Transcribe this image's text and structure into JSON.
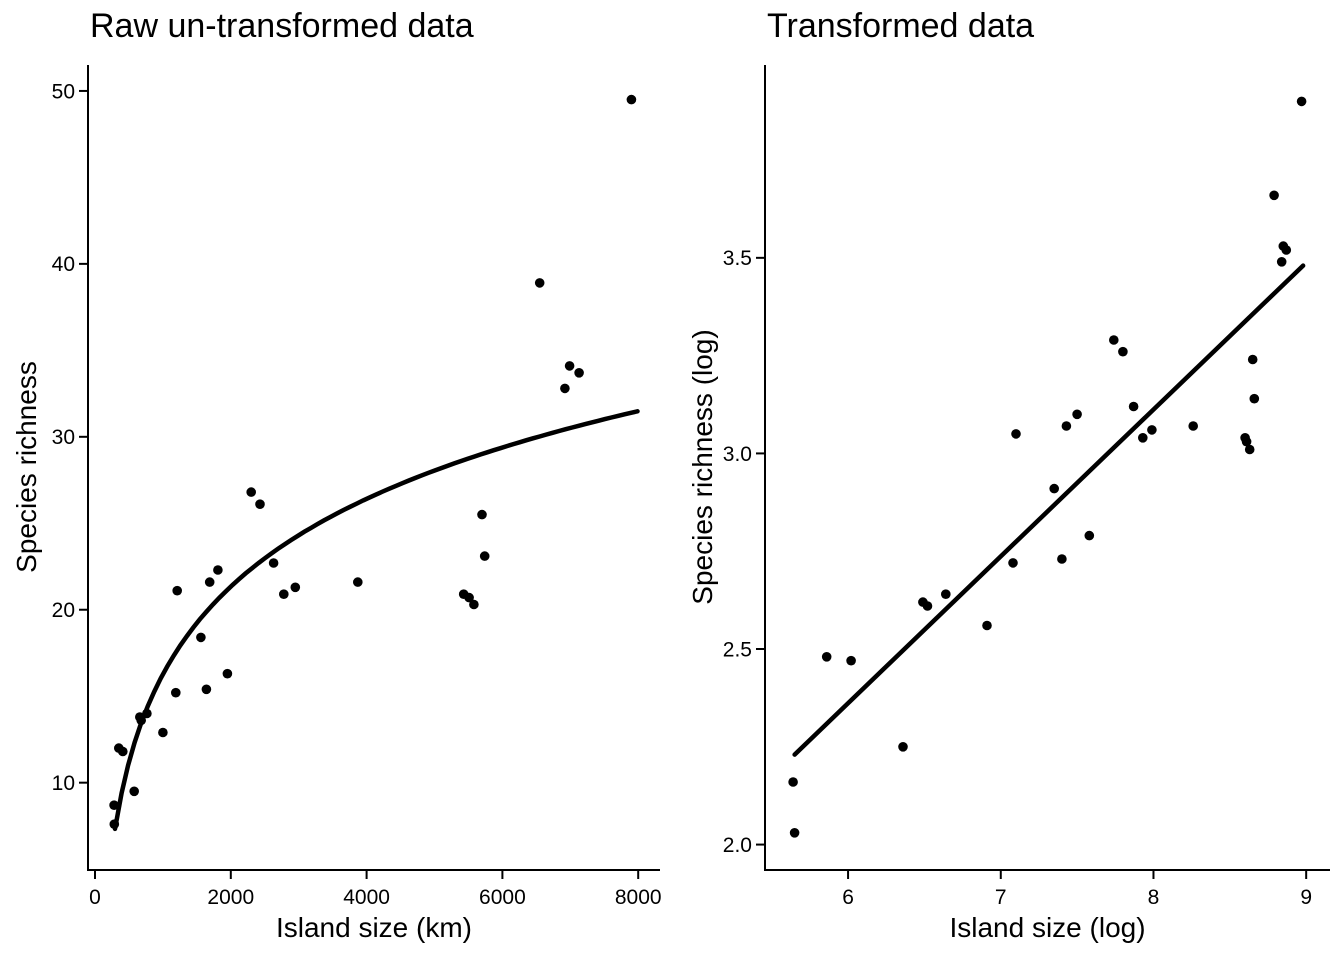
{
  "figure": {
    "background_color": "#FFFFFF",
    "ink_color": "#000000"
  },
  "chart_data": [
    {
      "id": "raw-panel",
      "type": "scatter",
      "title": "Raw un-transformed data",
      "xlabel": "Island size (km)",
      "ylabel": "Species richness",
      "grid": false,
      "legend": "none",
      "xlim": [
        -103,
        8321
      ],
      "ylim": [
        4.95,
        51.5
      ],
      "x_ticks": {
        "values": [
          0,
          2000,
          4000,
          6000,
          8000
        ],
        "labels": [
          "0",
          "2000",
          "4000",
          "6000",
          "8000"
        ]
      },
      "y_ticks": {
        "values": [
          10,
          20,
          30,
          40,
          50
        ],
        "labels": [
          "10",
          "20",
          "30",
          "40",
          "50"
        ]
      },
      "points": [
        [
          7900,
          49.5
        ],
        [
          6550,
          38.9
        ],
        [
          6990,
          34.1
        ],
        [
          7130,
          33.7
        ],
        [
          6920,
          32.8
        ],
        [
          5700,
          25.5
        ],
        [
          5740,
          23.1
        ],
        [
          5430,
          20.9
        ],
        [
          5510,
          20.7
        ],
        [
          5580,
          20.3
        ],
        [
          3870,
          21.6
        ],
        [
          2950,
          21.3
        ],
        [
          2780,
          20.9
        ],
        [
          2630,
          22.7
        ],
        [
          2430,
          26.1
        ],
        [
          2300,
          26.8
        ],
        [
          1810,
          22.3
        ],
        [
          1690,
          21.6
        ],
        [
          1210,
          21.1
        ],
        [
          1560,
          18.4
        ],
        [
          1950,
          16.3
        ],
        [
          1640,
          15.4
        ],
        [
          1190,
          15.2
        ],
        [
          1000,
          12.9
        ],
        [
          765,
          14.0
        ],
        [
          680,
          13.6
        ],
        [
          660,
          13.8
        ],
        [
          578,
          9.5
        ],
        [
          410,
          11.8
        ],
        [
          350,
          12.0
        ],
        [
          282,
          8.7
        ],
        [
          284,
          7.6
        ]
      ],
      "fit_curve": {
        "kind": "log",
        "formula": "y = -34.3 + 7.32 * ln(x)",
        "a": -34.3,
        "b": 7.32,
        "x_start": 295,
        "x_end": 7990
      }
    },
    {
      "id": "transformed-panel",
      "type": "scatter",
      "title": "Transformed data",
      "xlabel": "Island size (log)",
      "ylabel": "Species richness (log)",
      "grid": false,
      "legend": "none",
      "xlim": [
        5.456,
        9.156
      ],
      "ylim": [
        1.935,
        3.993
      ],
      "x_ticks": {
        "values": [
          6,
          7,
          8,
          9
        ],
        "labels": [
          "6",
          "7",
          "8",
          "9"
        ]
      },
      "y_ticks": {
        "values": [
          2.0,
          2.5,
          3.0,
          3.5
        ],
        "labels": [
          "2.0",
          "2.5",
          "3.0",
          "3.5"
        ]
      },
      "points": [
        [
          8.97,
          3.9
        ],
        [
          8.79,
          3.66
        ],
        [
          8.85,
          3.53
        ],
        [
          8.87,
          3.52
        ],
        [
          8.84,
          3.49
        ],
        [
          8.65,
          3.24
        ],
        [
          8.66,
          3.14
        ],
        [
          8.6,
          3.04
        ],
        [
          8.61,
          3.03
        ],
        [
          8.63,
          3.01
        ],
        [
          8.26,
          3.07
        ],
        [
          7.99,
          3.06
        ],
        [
          7.93,
          3.04
        ],
        [
          7.87,
          3.12
        ],
        [
          7.8,
          3.26
        ],
        [
          7.74,
          3.29
        ],
        [
          7.5,
          3.1
        ],
        [
          7.43,
          3.07
        ],
        [
          7.1,
          3.05
        ],
        [
          7.35,
          2.91
        ],
        [
          7.58,
          2.79
        ],
        [
          7.4,
          2.73
        ],
        [
          7.08,
          2.72
        ],
        [
          6.91,
          2.56
        ],
        [
          6.64,
          2.64
        ],
        [
          6.52,
          2.61
        ],
        [
          6.49,
          2.62
        ],
        [
          6.36,
          2.25
        ],
        [
          6.02,
          2.47
        ],
        [
          5.86,
          2.48
        ],
        [
          5.64,
          2.16
        ],
        [
          5.65,
          2.03
        ]
      ],
      "fit_curve": {
        "kind": "linear",
        "formula": "y = 2.23 + 0.375 * (x - 5.65)",
        "x_start": 5.65,
        "y_start": 2.23,
        "x_end": 8.98,
        "y_end": 3.48
      }
    }
  ]
}
